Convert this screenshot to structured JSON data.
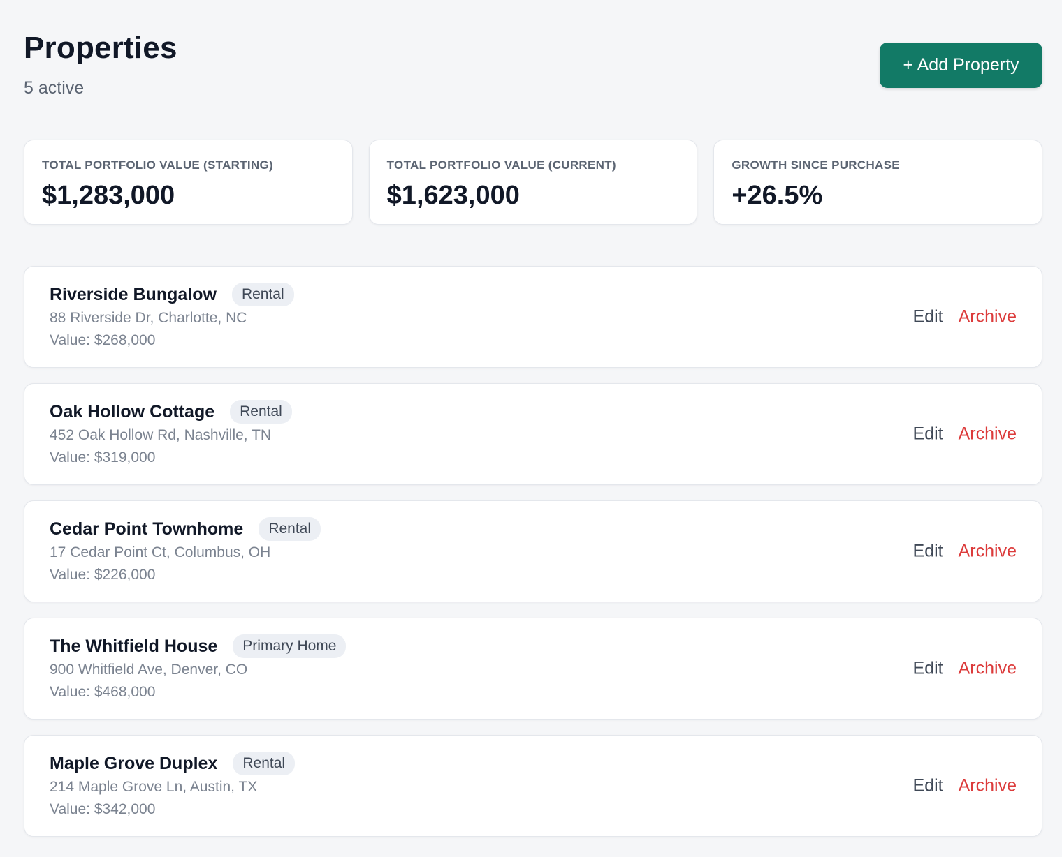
{
  "header": {
    "title": "Properties",
    "subtitle": "5 active",
    "add_button_label": "+ Add Property"
  },
  "stats": [
    {
      "label": "TOTAL PORTFOLIO VALUE (STARTING)",
      "value": "$1,283,000"
    },
    {
      "label": "TOTAL PORTFOLIO VALUE (CURRENT)",
      "value": "$1,623,000"
    },
    {
      "label": "GROWTH SINCE PURCHASE",
      "value": "+26.5%"
    }
  ],
  "properties": [
    {
      "name": "Riverside Bungalow",
      "tag": "Rental",
      "address": "88 Riverside Dr, Charlotte, NC",
      "value": "Value: $268,000",
      "edit_label": "Edit",
      "archive_label": "Archive"
    },
    {
      "name": "Oak Hollow Cottage",
      "tag": "Rental",
      "address": "452 Oak Hollow Rd, Nashville, TN",
      "value": "Value: $319,000",
      "edit_label": "Edit",
      "archive_label": "Archive"
    },
    {
      "name": "Cedar Point Townhome",
      "tag": "Rental",
      "address": "17 Cedar Point Ct, Columbus, OH",
      "value": "Value: $226,000",
      "edit_label": "Edit",
      "archive_label": "Archive"
    },
    {
      "name": "The Whitfield House",
      "tag": "Primary Home",
      "address": "900 Whitfield Ave, Denver, CO",
      "value": "Value: $468,000",
      "edit_label": "Edit",
      "archive_label": "Archive"
    },
    {
      "name": "Maple Grove Duplex",
      "tag": "Rental",
      "address": "214 Maple Grove Ln, Austin, TX",
      "value": "Value: $342,000",
      "edit_label": "Edit",
      "archive_label": "Archive"
    }
  ],
  "colors": {
    "accent": "#127a66",
    "danger": "#dc3b3b",
    "background": "#f5f6f8"
  }
}
